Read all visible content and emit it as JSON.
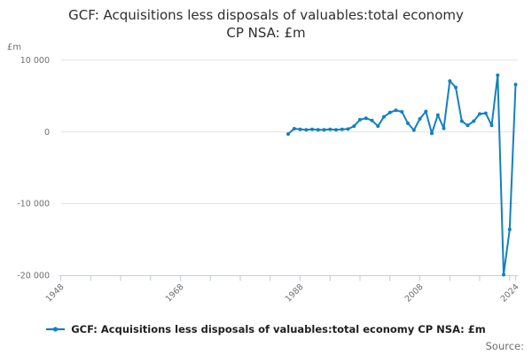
{
  "header": {
    "title_line1": "GCF: Acquisitions less disposals of valuables:total economy",
    "title_line2": "CP NSA: £m",
    "y_unit_label": "£m"
  },
  "legend": {
    "label": "GCF: Acquisitions less disposals of valuables:total economy CP NSA: £m"
  },
  "footer": {
    "source_label": "Source:"
  },
  "colors": {
    "line": "#1381be",
    "gridline": "#e3e3e3",
    "axis": "#c6d3e2",
    "tick_text": "#6e6e6e",
    "title_text": "#2e2e2e"
  },
  "chart_data": {
    "type": "line",
    "title": "GCF: Acquisitions less disposals of valuables:total economy CP NSA: £m",
    "xlabel": "",
    "ylabel": "£m",
    "legend_position": "bottom",
    "grid": "horizontal",
    "x_axis": {
      "min": 1948,
      "max": 2024,
      "tick_years": [
        1948,
        1953,
        1958,
        1963,
        1968,
        1973,
        1978,
        1983,
        1988,
        1993,
        1998,
        2003,
        2008,
        2013,
        2018,
        2023,
        2024
      ],
      "label_years": [
        1948,
        1968,
        1988,
        2008,
        2024
      ]
    },
    "y_axis": {
      "min": -20000,
      "max": 10000,
      "ticks": [
        {
          "value": 10000,
          "label": "10 000"
        },
        {
          "value": 0,
          "label": "0"
        },
        {
          "value": -10000,
          "label": "-10 000"
        },
        {
          "value": -20000,
          "label": "-20 000"
        }
      ]
    },
    "series": [
      {
        "name": "GCF: Acquisitions less disposals of valuables:total economy CP NSA: £m",
        "x": [
          1986,
          1987,
          1988,
          1989,
          1990,
          1991,
          1992,
          1993,
          1994,
          1995,
          1996,
          1997,
          1998,
          1999,
          2000,
          2001,
          2002,
          2003,
          2004,
          2005,
          2006,
          2007,
          2008,
          2009,
          2010,
          2011,
          2012,
          2013,
          2014,
          2015,
          2016,
          2017,
          2018,
          2019,
          2020,
          2021,
          2022,
          2023,
          2024
        ],
        "values": [
          -300,
          450,
          350,
          300,
          350,
          300,
          300,
          350,
          300,
          350,
          400,
          800,
          1700,
          1900,
          1600,
          800,
          2100,
          2700,
          3000,
          2800,
          1200,
          250,
          1800,
          2850,
          -200,
          2350,
          500,
          7100,
          6200,
          1500,
          900,
          1500,
          2500,
          2600,
          900,
          7900,
          -19900,
          -13600,
          6600
        ]
      }
    ]
  }
}
